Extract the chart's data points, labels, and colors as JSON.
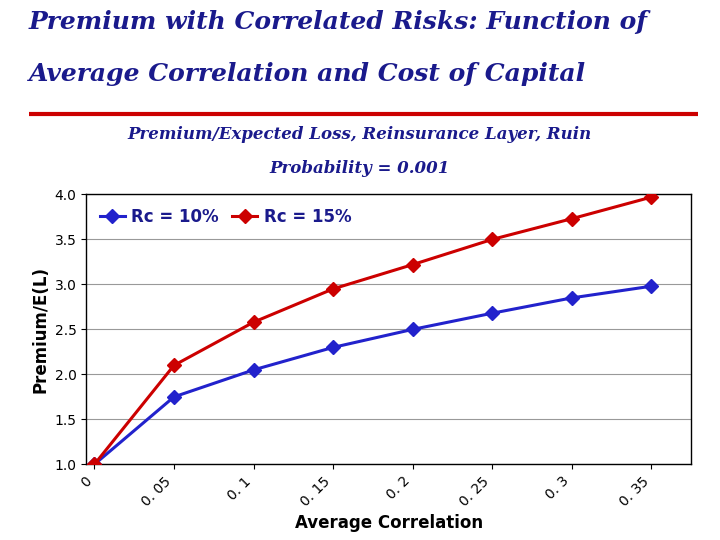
{
  "title_line1": "Premium with Correlated Risks: Function of",
  "title_line2": "Average Correlation and Cost of Capital",
  "subtitle_line1": "Premium/Expected Loss, Reinsurance Layer, Ruin",
  "subtitle_line2": "Probability = 0.001",
  "xlabel": "Average Correlation",
  "ylabel": "Premium/E(L)",
  "x_values": [
    0,
    0.05,
    0.1,
    0.15,
    0.2,
    0.25,
    0.3,
    0.35
  ],
  "rc10_values": [
    1.0,
    1.75,
    2.05,
    2.3,
    2.5,
    2.68,
    2.85,
    2.98
  ],
  "rc15_values": [
    1.0,
    2.1,
    2.58,
    2.95,
    3.22,
    3.5,
    3.73,
    3.97
  ],
  "rc10_color": "#2222CC",
  "rc15_color": "#CC0000",
  "rc10_label": "Rc = 10%",
  "rc15_label": "Rc = 15%",
  "ylim": [
    1.0,
    4.0
  ],
  "xlim": [
    -0.005,
    0.375
  ],
  "yticks": [
    1.0,
    1.5,
    2.0,
    2.5,
    3.0,
    3.5,
    4.0
  ],
  "xtick_labels": [
    "0",
    "0. 05",
    "0. 1",
    "0. 15",
    "0. 2",
    "0. 25",
    "0. 3",
    "0. 35"
  ],
  "xtick_values": [
    0,
    0.05,
    0.1,
    0.15,
    0.2,
    0.25,
    0.3,
    0.35
  ],
  "title_color": "#1a1a8c",
  "subtitle_color": "#1a1a8c",
  "bg_color": "#ffffff",
  "plot_bg_color": "#ffffff",
  "title_fontsize": 18,
  "subtitle_fontsize": 12,
  "axis_label_fontsize": 12,
  "tick_fontsize": 10,
  "legend_fontsize": 12,
  "line_width": 2.2,
  "marker_size": 7,
  "grid_color": "#999999",
  "red_sep_color": "#CC0000",
  "red_sep_linewidth": 3
}
